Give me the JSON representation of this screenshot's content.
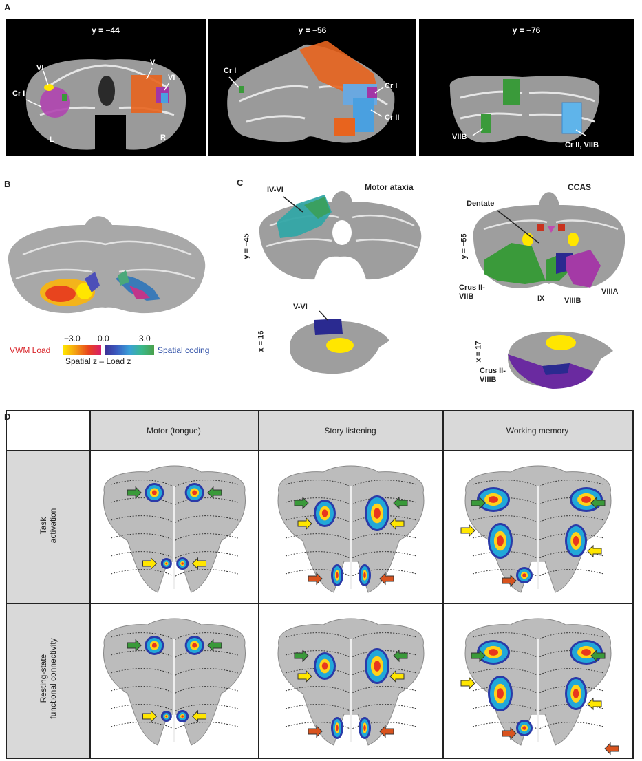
{
  "panelA": {
    "label": "A",
    "slices": [
      {
        "title": "y = −44",
        "labels": [
          "VI",
          "V",
          "VI",
          "Cr I",
          "L",
          "R"
        ]
      },
      {
        "title": "y = −56",
        "labels": [
          "Cr I",
          "Cr I",
          "Cr II"
        ]
      },
      {
        "title": "y = −76",
        "labels": [
          "VIIB",
          "Cr II, VIIB"
        ]
      }
    ]
  },
  "panelB": {
    "label": "B",
    "scale_min": "−3.0",
    "scale_mid": "0.0",
    "scale_max": "3.0",
    "left_label": "VWM Load",
    "right_label": "Spatial coding",
    "axis_label": "Spatial z – Load z",
    "colors": {
      "left": "#d9262b",
      "right": "#2e4fa6"
    }
  },
  "panelC": {
    "label": "C",
    "motor_title": "Motor ataxia",
    "ccas_title": "CCAS",
    "motor_y": "y = −45",
    "motor_x": "x = 16",
    "ccas_y": "y = −55",
    "ccas_x": "x = 17",
    "motor_labels": [
      "IV-VI",
      "V-VI"
    ],
    "ccas_labels": [
      "Dentate",
      "Crus II-\nVIIB",
      "IX",
      "VIIIB",
      "VIIIA",
      "Crus II-\nVIIIB"
    ]
  },
  "panelD": {
    "label": "D",
    "columns": [
      "Motor (tongue)",
      "Story listening",
      "Working memory"
    ],
    "rows": [
      "Task\nactivation",
      "Resting-state\nfunctional connectivity"
    ],
    "arrow_colors": {
      "green": "#3a9a3a",
      "yellow": "#ffe600",
      "red": "#d9531e"
    }
  }
}
